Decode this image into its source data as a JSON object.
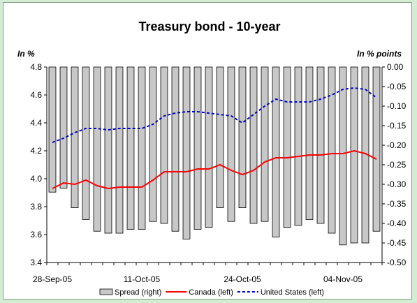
{
  "chart_data": {
    "type": "bar+line",
    "title": "Treasury bond - 10-year",
    "left_axis_label": "In %",
    "right_axis_label": "In % points",
    "left_ylim": [
      3.4,
      4.8
    ],
    "left_ticks": [
      "4.8",
      "4.6",
      "4.4",
      "4.2",
      "4.0",
      "3.8",
      "3.6",
      "3.4"
    ],
    "right_ylim": [
      -0.5,
      0.0
    ],
    "right_ticks": [
      "0.00",
      "-0.05",
      "-0.10",
      "-0.15",
      "-0.20",
      "-0.25",
      "-0.30",
      "-0.35",
      "-0.40",
      "-0.45",
      "-0.50"
    ],
    "x_tick_labels": [
      {
        "label": "28-Sep-05",
        "index": 0
      },
      {
        "label": "11-Oct-05",
        "index": 8
      },
      {
        "label": "24-Oct-05",
        "index": 17
      },
      {
        "label": "04-Nov-05",
        "index": 26
      }
    ],
    "n_points": 30,
    "series": [
      {
        "name": "Spread (right)",
        "type": "bar",
        "axis": "right",
        "color": "#c8c8c8",
        "values": [
          -0.32,
          -0.31,
          -0.36,
          -0.39,
          -0.42,
          -0.425,
          -0.425,
          -0.415,
          -0.415,
          -0.395,
          -0.4,
          -0.42,
          -0.44,
          -0.415,
          -0.41,
          -0.36,
          -0.395,
          -0.36,
          -0.4,
          -0.395,
          -0.435,
          -0.41,
          -0.405,
          -0.39,
          -0.4,
          -0.425,
          -0.455,
          -0.45,
          -0.45,
          -0.42
        ]
      },
      {
        "name": "Canada (left)",
        "type": "line",
        "axis": "left",
        "color": "#ff0000",
        "values": [
          3.93,
          3.97,
          3.96,
          3.99,
          3.95,
          3.93,
          3.94,
          3.94,
          3.94,
          3.99,
          4.05,
          4.05,
          4.05,
          4.07,
          4.07,
          4.1,
          4.06,
          4.03,
          4.06,
          4.12,
          4.15,
          4.15,
          4.16,
          4.17,
          4.17,
          4.18,
          4.18,
          4.2,
          4.18,
          4.14
        ]
      },
      {
        "name": "United States (left)",
        "type": "line",
        "axis": "left",
        "color": "#0000cc",
        "dashed": true,
        "values": [
          4.26,
          4.29,
          4.33,
          4.36,
          4.36,
          4.35,
          4.36,
          4.36,
          4.36,
          4.39,
          4.45,
          4.47,
          4.48,
          4.48,
          4.47,
          4.46,
          4.45,
          4.4,
          4.46,
          4.52,
          4.57,
          4.55,
          4.55,
          4.55,
          4.57,
          4.6,
          4.64,
          4.65,
          4.64,
          4.58
        ]
      }
    ],
    "legend": {
      "position": "bottom",
      "entries": [
        "Spread (right)",
        "Canada (left)",
        "United States (left)"
      ]
    },
    "grid": false
  }
}
